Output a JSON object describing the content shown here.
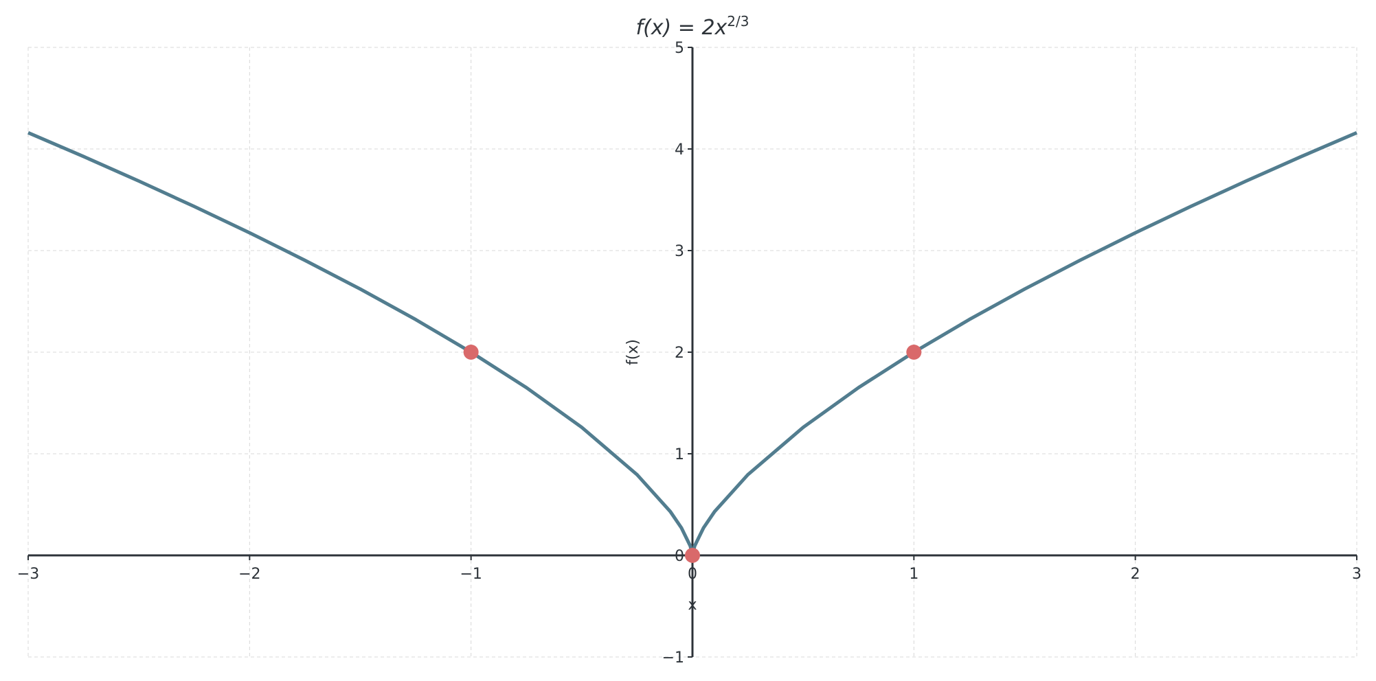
{
  "chart_data": {
    "type": "line",
    "title": {
      "base": "f(x) = 2x",
      "sup": "2/3"
    },
    "x_label": "x",
    "y_label": "f(x)",
    "x": [
      -3,
      -2.75,
      -2.5,
      -2.25,
      -2,
      -1.75,
      -1.5,
      -1.25,
      -1,
      -0.75,
      -0.5,
      -0.25,
      -0.1,
      -0.05,
      -0.01,
      0,
      0.01,
      0.05,
      0.1,
      0.25,
      0.5,
      0.75,
      1,
      1.25,
      1.5,
      1.75,
      2,
      2.25,
      2.5,
      2.75,
      3
    ],
    "values": [
      4.16,
      3.926,
      3.684,
      3.434,
      3.175,
      2.904,
      2.621,
      2.321,
      2,
      1.651,
      1.26,
      0.794,
      0.431,
      0.271,
      0.093,
      0,
      0.093,
      0.271,
      0.431,
      0.794,
      1.26,
      1.651,
      2,
      2.321,
      2.621,
      2.904,
      3.175,
      3.434,
      3.684,
      3.926,
      4.16
    ],
    "color": "#527d8f",
    "points": {
      "x": [
        -1,
        0,
        1
      ],
      "values": [
        2,
        0,
        2
      ],
      "color": "#d9696a"
    },
    "xlim": [
      -3,
      3
    ],
    "ylim": [
      -1,
      5
    ],
    "xticks": [
      {
        "value": -3,
        "label": "−3"
      },
      {
        "value": -2,
        "label": "−2"
      },
      {
        "value": -1,
        "label": "−1"
      },
      0,
      1,
      2,
      3
    ],
    "yticks": [
      {
        "value": -1,
        "label": "−1"
      },
      0,
      1,
      2,
      3,
      4,
      5
    ],
    "grid": true
  }
}
